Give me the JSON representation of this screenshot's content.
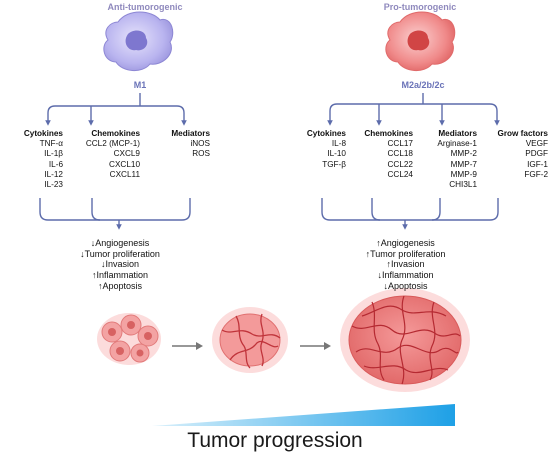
{
  "left": {
    "label": "Anti-tumorogenic",
    "type": "M1",
    "columns": [
      {
        "header": "Cytokines",
        "items": [
          "TNF-α",
          "IL-1β",
          "IL-6",
          "IL-12",
          "IL-23"
        ]
      },
      {
        "header": "Chemokines",
        "items": [
          "CCL2 (MCP-1)",
          "CXCL9",
          "CXCL10",
          "CXCL11"
        ]
      },
      {
        "header": "Mediators",
        "items": [
          "iNOS",
          "ROS"
        ]
      }
    ],
    "effects": [
      "↓Angiogenesis",
      "↓Tumor proliferation",
      "↓Invasion",
      "↑Inflammation",
      "↑Apoptosis"
    ]
  },
  "right": {
    "label": "Pro-tumorogenic",
    "type": "M2a/2b/2c",
    "columns": [
      {
        "header": "Cytokines",
        "items": [
          "IL-8",
          "IL-10",
          "TGF-β"
        ]
      },
      {
        "header": "Chemokines",
        "items": [
          "CCL17",
          "CCL18",
          "CCL22",
          "CCL24"
        ]
      },
      {
        "header": "Mediators",
        "items": [
          "Arginase-1",
          "MMP-2",
          "MMP-7",
          "MMP-9",
          "CHI3L1"
        ]
      },
      {
        "header": "Grow factors",
        "items": [
          "VEGF",
          "PDGF",
          "IGF-1",
          "FGF-2"
        ]
      }
    ],
    "effects": [
      "↑Angiogenesis",
      "↑Tumor proliferation",
      "↑Invasion",
      "↓Inflammation",
      "↓Apoptosis"
    ]
  },
  "footer": {
    "title": "Tumor progression"
  },
  "colors": {
    "m1_cell": "#b8b4ee",
    "m2_cell": "#f08a8a",
    "connector": "#5d6cab",
    "tumor": "#d9474f",
    "gradient_end": "#1ea0e6"
  }
}
